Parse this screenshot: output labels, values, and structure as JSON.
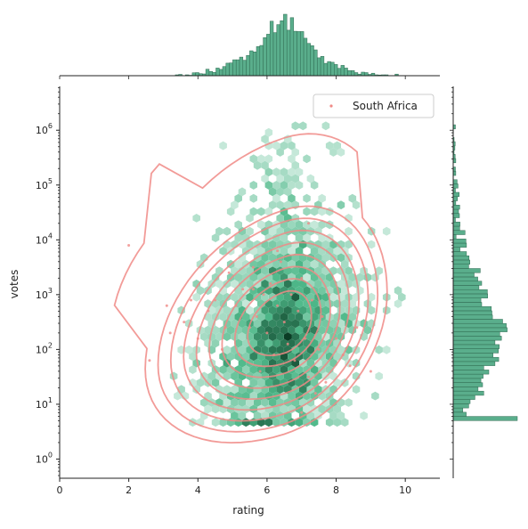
{
  "chart_data": {
    "type": "scatter",
    "kind": "joint plot: hexbin density with KDE contours, marginal histograms and a scatter overlay",
    "xlabel": "rating",
    "ylabel": "votes",
    "xlim": [
      0,
      11
    ],
    "ylim_log10": [
      -0.35,
      6.8
    ],
    "y_scale": "log",
    "x_ticks": [
      "0",
      "2",
      "4",
      "6",
      "8",
      "10"
    ],
    "x_tick_values": [
      0,
      2,
      4,
      6,
      8,
      10
    ],
    "y_ticks": [
      "10^0",
      "10^1",
      "10^2",
      "10^3",
      "10^4",
      "10^5",
      "10^6"
    ],
    "y_tick_values": [
      0,
      1,
      2,
      3,
      4,
      5,
      6
    ],
    "grid": false,
    "legend": {
      "placement": "top-right",
      "entries": [
        "South Africa"
      ]
    },
    "colors": {
      "hexbin_light": "#e6f5ef",
      "hexbin_mid": "#4fb98a",
      "hexbin_dark": "#0b3d25",
      "histogram": "#5aae8c",
      "kde": "#f08a86",
      "scatter": "#f08a86"
    },
    "series": [
      {
        "name": "South Africa",
        "points": [
          [
            2.0,
            3.9
          ],
          [
            2.6,
            1.8
          ],
          [
            3.1,
            2.8
          ],
          [
            3.2,
            2.3
          ],
          [
            3.6,
            2.5
          ],
          [
            3.8,
            2.9
          ],
          [
            4.0,
            2.2
          ],
          [
            4.3,
            2.7
          ],
          [
            4.5,
            2.9
          ],
          [
            4.7,
            2.0
          ],
          [
            4.8,
            2.4
          ],
          [
            4.9,
            3.4
          ],
          [
            5.1,
            2.8
          ],
          [
            5.2,
            1.9
          ],
          [
            5.3,
            3.1
          ],
          [
            5.5,
            2.4
          ],
          [
            5.6,
            3.5
          ],
          [
            5.7,
            2.6
          ],
          [
            5.8,
            1.6
          ],
          [
            5.9,
            3.0
          ],
          [
            6.0,
            2.3
          ],
          [
            6.1,
            3.2
          ],
          [
            6.2,
            1.9
          ],
          [
            6.3,
            2.8
          ],
          [
            6.4,
            3.6
          ],
          [
            6.5,
            2.5
          ],
          [
            6.6,
            2.1
          ],
          [
            6.7,
            3.0
          ],
          [
            6.8,
            1.8
          ],
          [
            6.9,
            2.7
          ],
          [
            7.0,
            0.85
          ],
          [
            7.0,
            3.3
          ],
          [
            7.1,
            2.2
          ],
          [
            7.2,
            1.5
          ],
          [
            7.3,
            2.9
          ],
          [
            7.4,
            1.2
          ],
          [
            7.5,
            2.0
          ],
          [
            7.6,
            2.6
          ],
          [
            7.7,
            1.4
          ],
          [
            7.8,
            3.0
          ],
          [
            8.0,
            2.2
          ],
          [
            8.2,
            1.9
          ],
          [
            8.4,
            1.7
          ],
          [
            8.6,
            2.4
          ],
          [
            9.0,
            1.6
          ],
          [
            7.2,
            4.3
          ],
          [
            6.3,
            3.8
          ],
          [
            5.6,
            3.1
          ]
        ]
      }
    ],
    "kde_levels": 9,
    "hexbin_gridsize": 50,
    "hexbin_samples": 5000,
    "histogram_bins_x": 90,
    "histogram_bins_y": 70
  }
}
